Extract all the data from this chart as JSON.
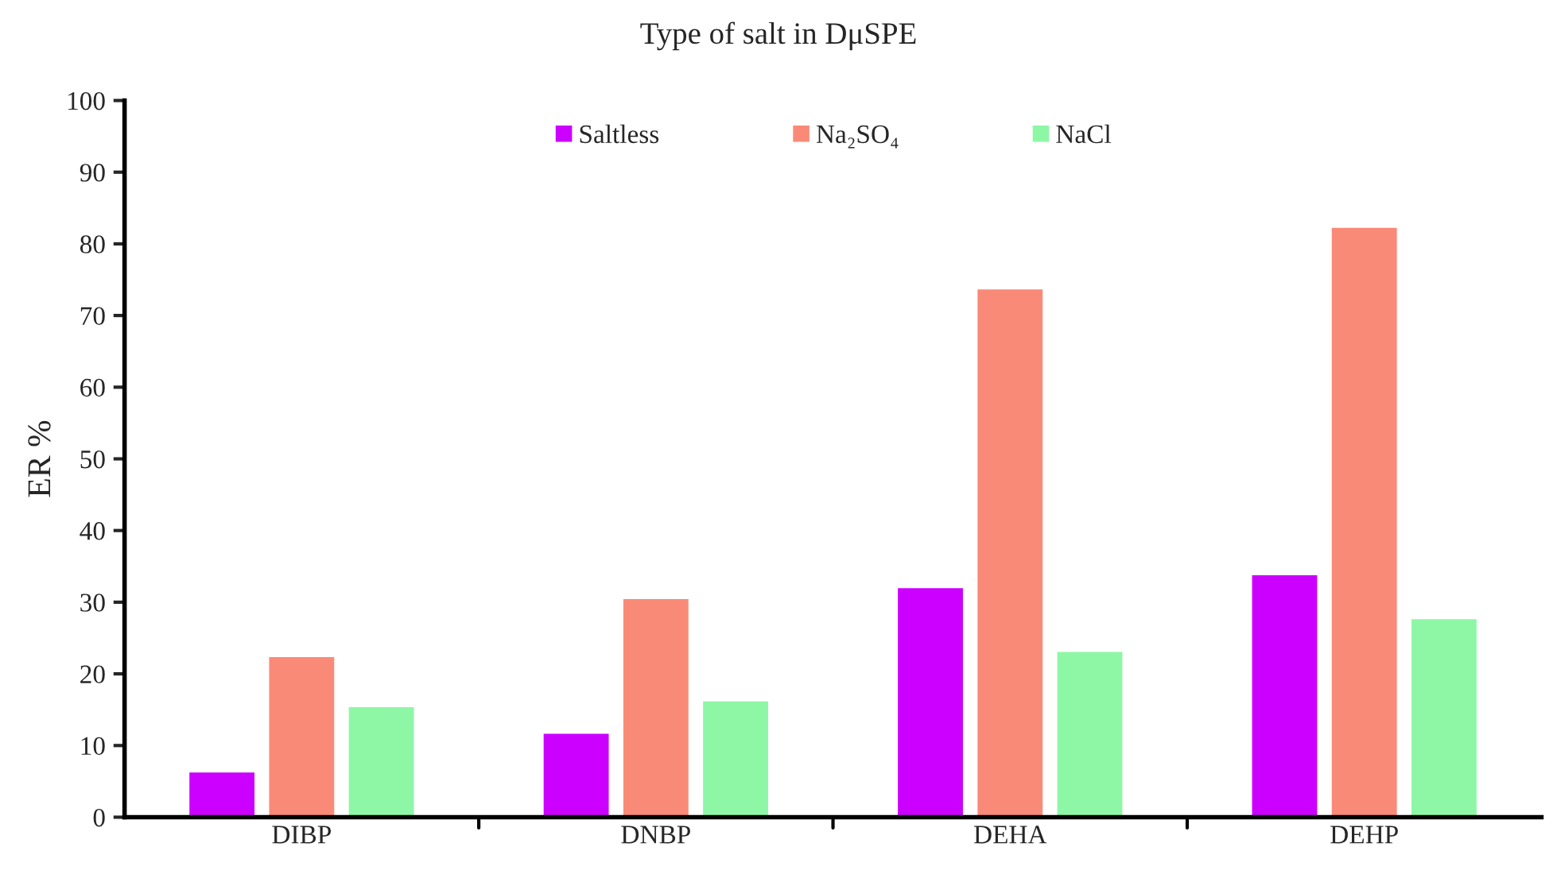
{
  "chart_data": {
    "type": "bar",
    "title": "Type of salt in DμSPE",
    "ylabel": "ER %",
    "categories": [
      "DIBP",
      "DNBP",
      "DEHA",
      "DEHP"
    ],
    "series": [
      {
        "name": "Saltless",
        "color": "#cc00ff",
        "values": [
          6.4,
          11.8,
          32.1,
          33.9
        ]
      },
      {
        "name": "Na₂SO₄",
        "color": "#fa8a78",
        "values": [
          22.5,
          30.6,
          73.8,
          82.4
        ]
      },
      {
        "name": "NaCl",
        "color": "#8ef7a6",
        "values": [
          15.5,
          16.3,
          23.2,
          27.8
        ]
      }
    ],
    "ylim": [
      0,
      100
    ],
    "yticks": [
      0,
      10,
      20,
      30,
      40,
      50,
      60,
      70,
      80,
      90,
      100
    ],
    "grid": false,
    "legend": "top"
  }
}
